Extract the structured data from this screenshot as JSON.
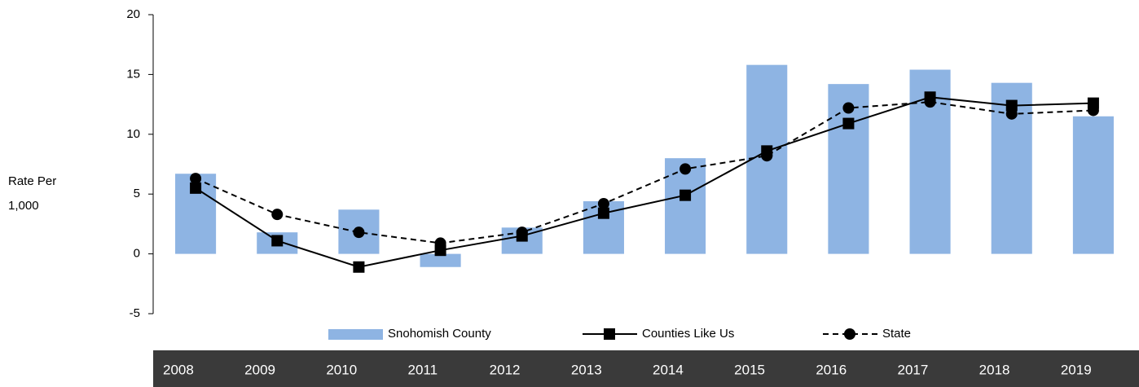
{
  "chart_data": {
    "type": "bar",
    "ylabel": "Rate Per 1,000",
    "categories": [
      "2008",
      "2009",
      "2010",
      "2011",
      "2012",
      "2013",
      "2014",
      "2015",
      "2016",
      "2017",
      "2018",
      "2019"
    ],
    "series": [
      {
        "name": "Snohomish County",
        "type": "bar",
        "color": "#8eb4e3",
        "values": [
          6.7,
          1.8,
          3.7,
          -1.1,
          2.2,
          4.4,
          8.0,
          15.8,
          14.2,
          15.4,
          14.3,
          11.5
        ]
      },
      {
        "name": "Counties Like Us",
        "type": "line",
        "marker": "square",
        "dashed": false,
        "color": "#000000",
        "values": [
          5.5,
          1.1,
          -1.1,
          0.3,
          1.5,
          3.4,
          4.9,
          8.6,
          10.9,
          13.1,
          12.4,
          12.6
        ]
      },
      {
        "name": "State",
        "type": "line",
        "marker": "circle",
        "dashed": true,
        "color": "#000000",
        "values": [
          6.3,
          3.3,
          1.8,
          0.9,
          1.8,
          4.2,
          7.1,
          8.2,
          12.2,
          12.7,
          11.7,
          12.0
        ]
      }
    ],
    "ylim": [
      -5,
      20
    ],
    "yticks": [
      -5,
      0,
      5,
      10,
      15,
      20
    ]
  }
}
